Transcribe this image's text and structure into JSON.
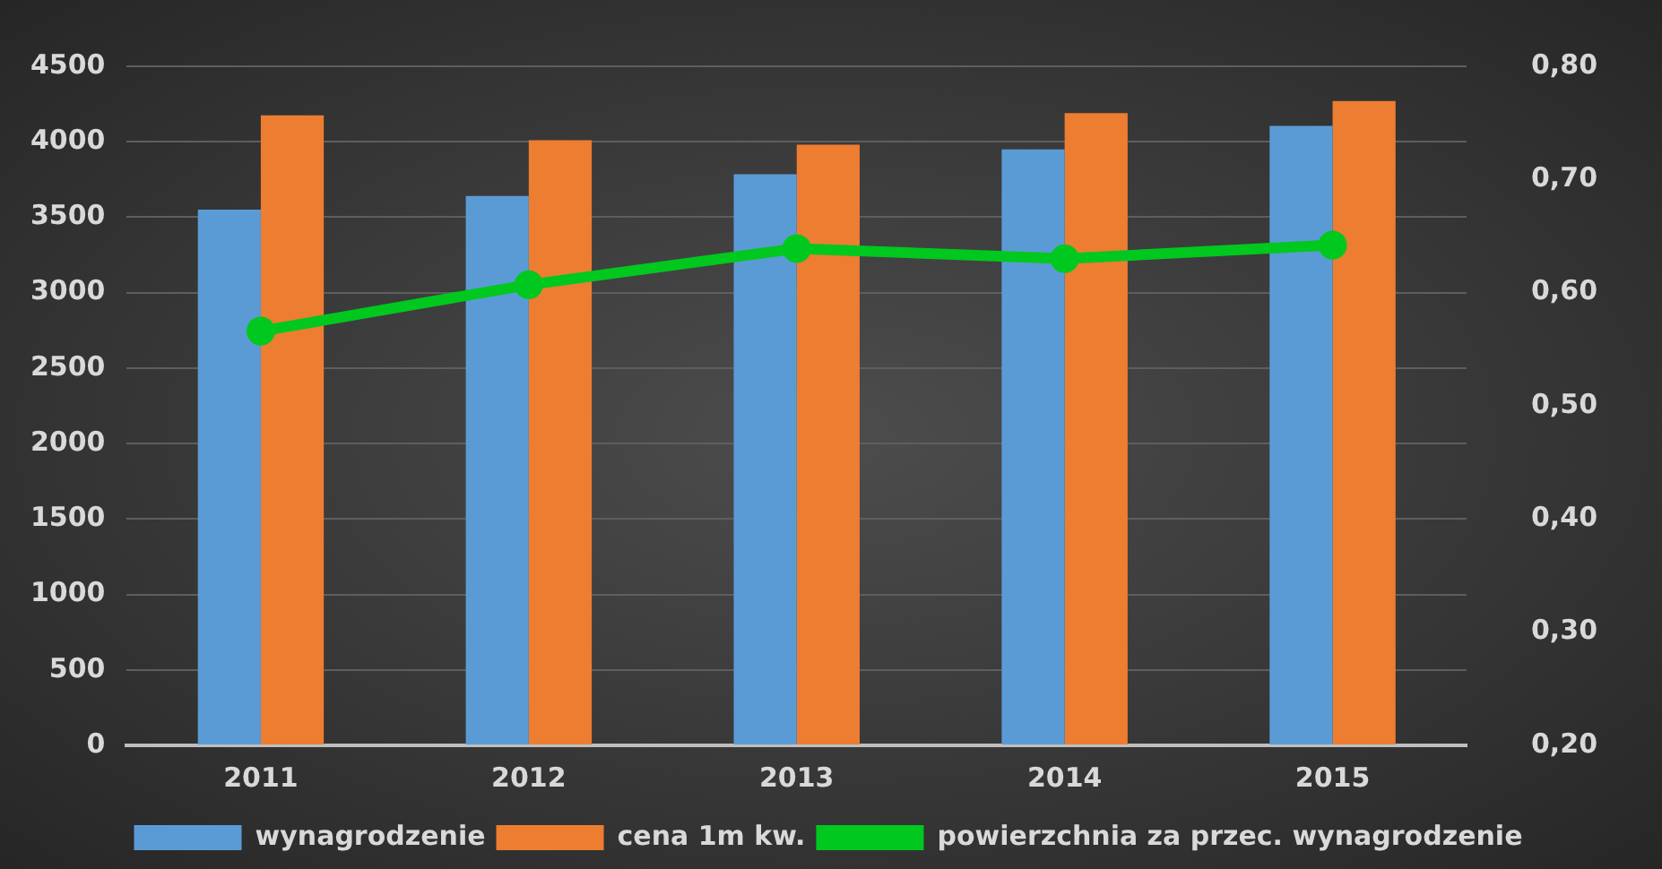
{
  "chart_data": {
    "type": "bar",
    "categories": [
      "2011",
      "2012",
      "2013",
      "2014",
      "2015"
    ],
    "series": [
      {
        "name": "wynagrodzenie",
        "color": "#5b9bd5",
        "values": [
          3550,
          3640,
          3785,
          3950,
          4105
        ]
      },
      {
        "name": "cena 1m kw.",
        "color": "#ed7d31",
        "values": [
          4175,
          4010,
          3980,
          4190,
          4270
        ]
      },
      {
        "name": "powierzchnia za przec. wynagrodzenie",
        "type": "line",
        "axis": "y2",
        "color": "#00c81e",
        "values": [
          0.566,
          0.607,
          0.639,
          0.63,
          0.642
        ]
      }
    ],
    "ylim": [
      0,
      4500
    ],
    "yticks": [
      0,
      500,
      1000,
      1500,
      2000,
      2500,
      3000,
      3500,
      4000,
      4500
    ],
    "y2lim": [
      0.2,
      0.8
    ],
    "y2ticks": [
      {
        "value": 0.2,
        "label": "0,20"
      },
      {
        "value": 0.3,
        "label": "0,30"
      },
      {
        "value": 0.4,
        "label": "0,40"
      },
      {
        "value": 0.5,
        "label": "0,50"
      },
      {
        "value": 0.6,
        "label": "0,60"
      },
      {
        "value": 0.7,
        "label": "0,70"
      },
      {
        "value": 0.8,
        "label": "0,80"
      }
    ],
    "grid": "y",
    "legend": "bottom",
    "marker": "circle",
    "line_style": "solid"
  }
}
